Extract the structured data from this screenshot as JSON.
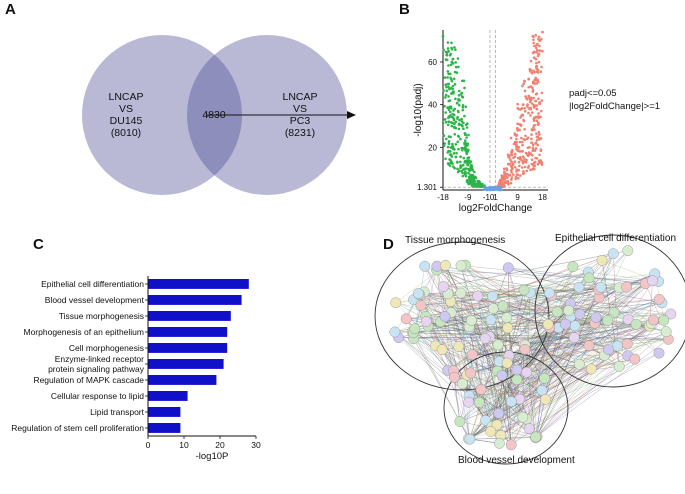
{
  "panels": {
    "A": {
      "label": "A",
      "left_set": [
        "LNCAP",
        "VS",
        "DU145",
        "(8010)"
      ],
      "right_set": [
        "LNCAP",
        "VS",
        "PC3",
        "(8231)"
      ],
      "overlap": "4830",
      "colors": {
        "circle": "#b9b9d6",
        "overlap": "#8e8ebd"
      }
    },
    "B": {
      "label": "B",
      "ylabel": "-log10(padj)",
      "xlabel": "log2FoldChange",
      "threshold_note": [
        "padj<=0.05",
        "|log2FoldChange|>=1"
      ],
      "colors": {
        "down": "#2db34a",
        "up": "#f08070",
        "ns": "#6aa0e6"
      }
    },
    "C": {
      "label": "C"
    },
    "D": {
      "label": "D",
      "clusters": [
        "Tissue morphogenesis",
        "Epithelial cell differentiation",
        "Blood vessel development"
      ]
    }
  },
  "chart_data": [
    {
      "type": "scatter",
      "panel": "B",
      "x_ticks": [
        "-18",
        "-9",
        "-10",
        "1",
        "9",
        "18"
      ],
      "y_ticks": [
        "1.301",
        "20",
        "40",
        "60"
      ],
      "xlim": [
        -18,
        20
      ],
      "ylim": [
        0,
        75
      ],
      "thresholds": {
        "padj_line": 1.301,
        "fc_lines": [
          -1,
          1
        ]
      },
      "series": [
        {
          "name": "down",
          "points": [
            [
              -18,
              72
            ],
            [
              -16,
              65
            ],
            [
              -13,
              55
            ],
            [
              -12,
              42
            ],
            [
              -11,
              30
            ],
            [
              -10,
              22
            ],
            [
              -9,
              15
            ],
            [
              -8,
              10
            ],
            [
              -7,
              6
            ],
            [
              -5,
              4
            ],
            [
              -3,
              2
            ]
          ]
        },
        {
          "name": "up",
          "points": [
            [
              18,
              74
            ],
            [
              17,
              70
            ],
            [
              15,
              62
            ],
            [
              13,
              52
            ],
            [
              11,
              40
            ],
            [
              9,
              28
            ],
            [
              7,
              18
            ],
            [
              5,
              10
            ],
            [
              4,
              6
            ],
            [
              3,
              4
            ],
            [
              2,
              2
            ]
          ]
        },
        {
          "name": "not significant",
          "points": [
            [
              -1,
              1
            ],
            [
              0,
              0.5
            ],
            [
              1,
              1
            ],
            [
              -2,
              0.8
            ],
            [
              2,
              0.8
            ]
          ]
        }
      ]
    },
    {
      "type": "bar",
      "panel": "C",
      "orientation": "horizontal",
      "categories": [
        "Epithelial cell differentiation",
        "Blood vessel development",
        "Tissue morphogenesis",
        "Morphogenesis of an epithelium",
        "Cell morphogenesis",
        "Enzyme-linked receptor\nprotein signaling pathway",
        "Regulation of MAPK cascade",
        "Cellular response to lipid",
        "Lipid transport",
        "Regulation of stem cell proliferation"
      ],
      "values": [
        28,
        26,
        23,
        22,
        22,
        21,
        19,
        11,
        9,
        9
      ],
      "xlabel": "-log10P",
      "x_ticks": [
        "0",
        "10",
        "20",
        "30"
      ],
      "xlim": [
        0,
        30
      ],
      "color": "#1010c8"
    }
  ]
}
